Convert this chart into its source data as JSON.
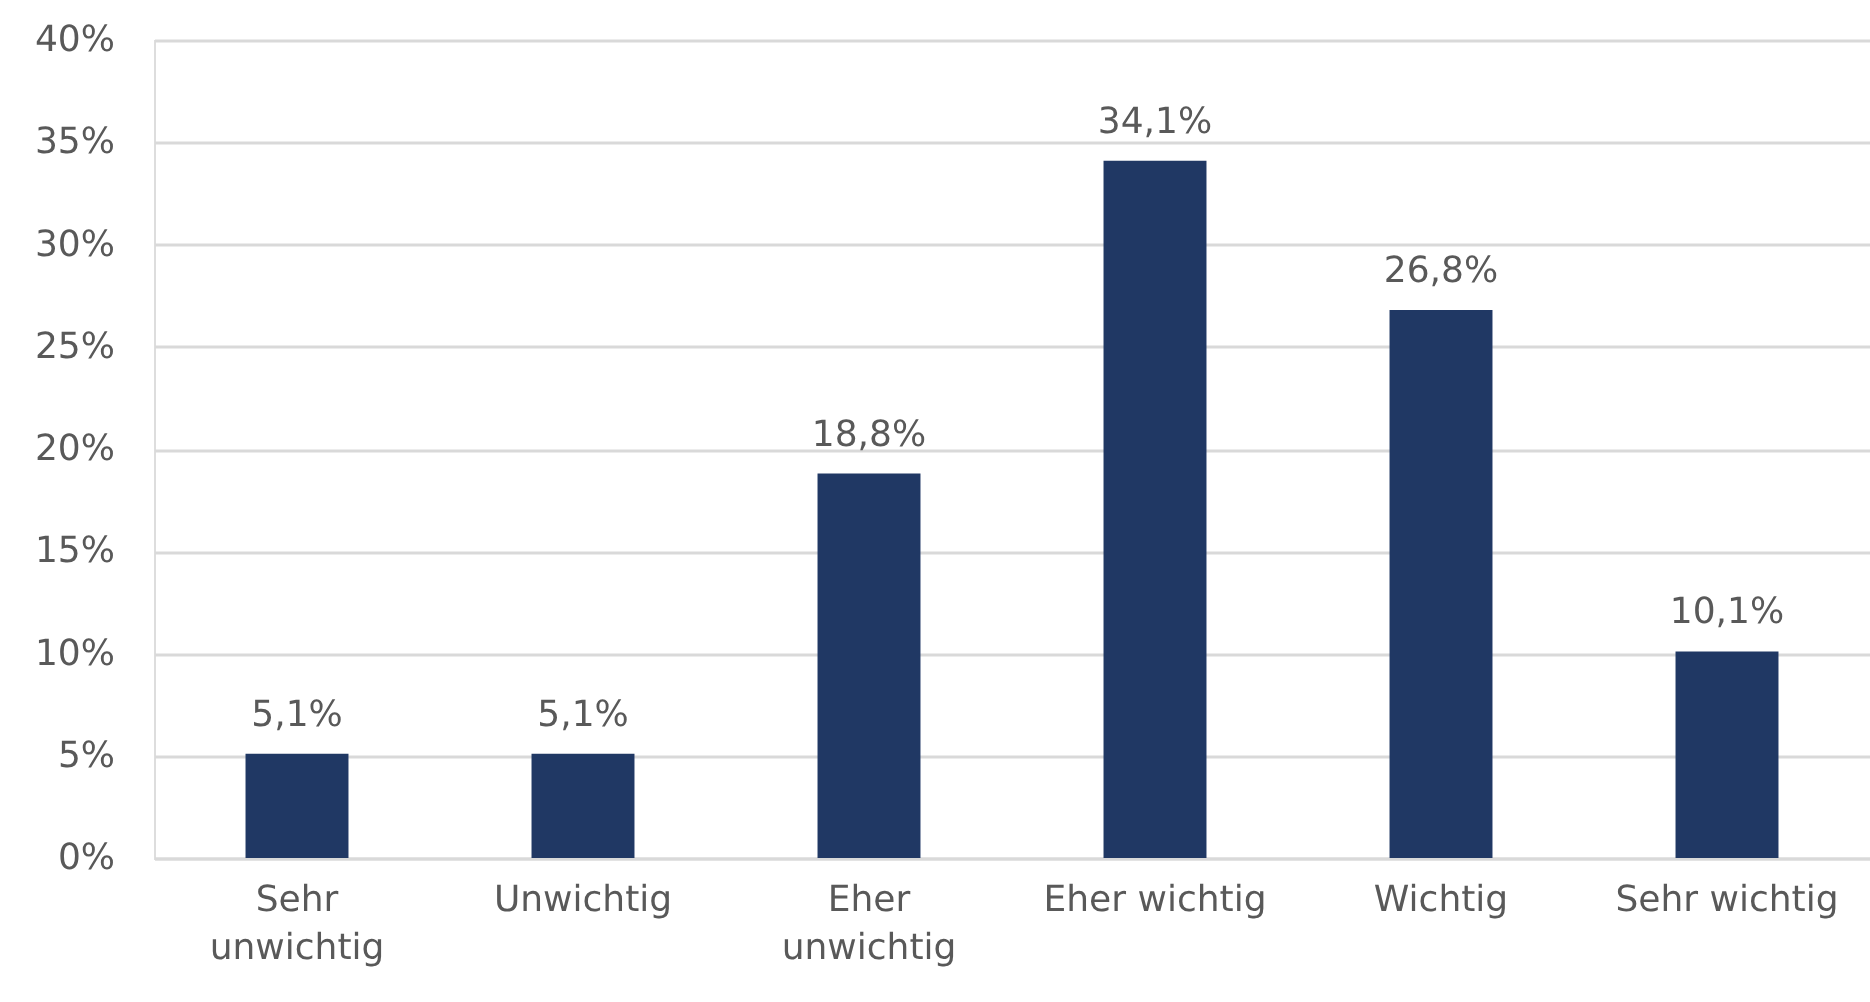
{
  "chart_data": {
    "type": "bar",
    "categories": [
      "Sehr unwichtig",
      "Unwichtig",
      "Eher unwichtig",
      "Eher wichtig",
      "Wichtig",
      "Sehr wichtig"
    ],
    "values": [
      5.1,
      5.1,
      18.8,
      34.1,
      26.8,
      10.1
    ],
    "value_labels": [
      "5,1%",
      "5,1%",
      "18,8%",
      "34,1%",
      "26,8%",
      "10,1%"
    ],
    "color": "#203864",
    "ylim": [
      0,
      40
    ],
    "yticks": [
      {
        "value": 0,
        "label": "0%"
      },
      {
        "value": 5,
        "label": "5%"
      },
      {
        "value": 10,
        "label": "10%"
      },
      {
        "value": 15,
        "label": "15%"
      },
      {
        "value": 20,
        "label": "20%"
      },
      {
        "value": 25,
        "label": "25%"
      },
      {
        "value": 30,
        "label": "30%"
      },
      {
        "value": 35,
        "label": "35%"
      },
      {
        "value": 40,
        "label": "40%"
      }
    ],
    "grid": "y"
  }
}
